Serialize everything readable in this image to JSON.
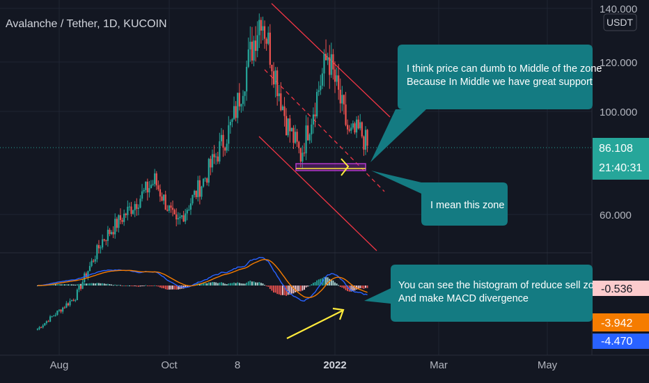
{
  "header": {
    "title": "Avalanche / Tether, 1D, KUCOIN"
  },
  "price_axis": {
    "currency_label": "USDT",
    "ticks": [
      "140.000",
      "120.000",
      "100.000",
      "60.000"
    ],
    "current_price": "86.108",
    "countdown": "21:40:31"
  },
  "macd_axis": {
    "badges": [
      {
        "text": "-0.536",
        "bg": "#fccbcd",
        "fg": "#131722"
      },
      {
        "text": "-3.942",
        "bg": "#f57c00",
        "fg": "#ffffff"
      },
      {
        "text": "-4.470",
        "bg": "#2962ff",
        "fg": "#ffffff"
      }
    ]
  },
  "time_axis": {
    "labels": [
      "Aug",
      "Oct",
      "8",
      "2022",
      "Mar",
      "May"
    ]
  },
  "annotations": {
    "callout1": [
      "I think price can dumb to Middle of the zone",
      "Because In Middle we have great support"
    ],
    "callout2": [
      "I mean this zone"
    ],
    "callout3": [
      "You can see the histogram of reduce sell zone",
      "And make MACD divergence"
    ]
  },
  "colors": {
    "background": "#131722",
    "up": "#26a69a",
    "down": "#ef5350",
    "macd_line": "#2962ff",
    "signal_line": "#f57c00",
    "channel": "#f23645",
    "callout": "#147b82",
    "arrow": "#ffeb3b",
    "zone": "#9c27b0"
  },
  "chart_data": [
    {
      "type": "candlestick",
      "title": "Avalanche / Tether, 1D, KUCOIN",
      "ylabel": "USDT",
      "ylim": [
        45,
        142
      ],
      "x_ticks": [
        "Aug",
        "Oct",
        "8",
        "2022",
        "Mar",
        "May"
      ],
      "ohlc_approx": [
        {
          "date": "2021-07-20",
          "close": 12
        },
        {
          "date": "2021-08-10",
          "close": 25
        },
        {
          "date": "2021-08-25",
          "close": 48
        },
        {
          "date": "2021-09-23",
          "close": 72
        },
        {
          "date": "2021-10-05",
          "close": 54
        },
        {
          "date": "2021-10-20",
          "close": 72
        },
        {
          "date": "2021-11-05",
          "close": 95
        },
        {
          "date": "2021-11-21",
          "close": 140
        },
        {
          "date": "2021-12-05",
          "close": 96
        },
        {
          "date": "2021-12-13",
          "close": 82
        },
        {
          "date": "2021-12-28",
          "close": 123
        },
        {
          "date": "2022-01-09",
          "close": 90
        },
        {
          "date": "2022-01-15",
          "close": 92
        },
        {
          "date": "2022-01-19",
          "close": 86.108
        }
      ],
      "last_price": 86.108
    },
    {
      "type": "bar",
      "title": "",
      "series": [
        {
          "name": "",
          "values": [
            -0.536
          ]
        },
        {
          "name": "",
          "values": [
            -3.942
          ]
        },
        {
          "name": "",
          "values": [
            -4.47
          ]
        }
      ]
    }
  ]
}
